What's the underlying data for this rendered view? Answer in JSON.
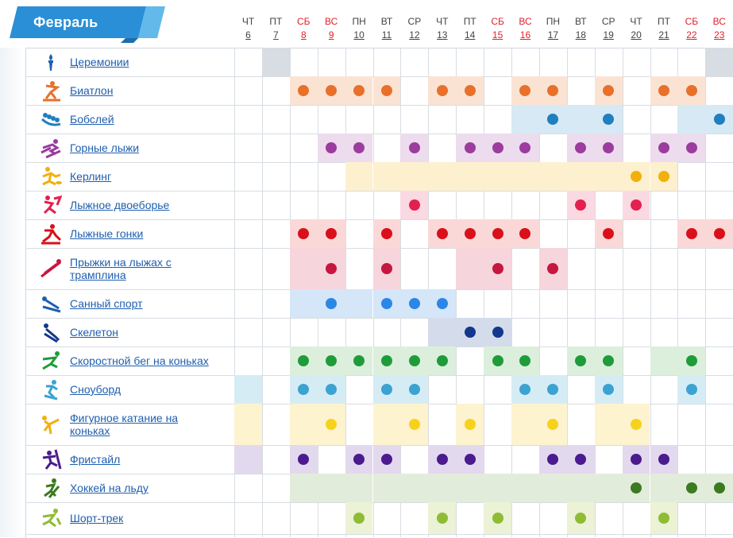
{
  "month": "Февраль",
  "days": [
    {
      "wd": "ЧТ",
      "d": "6",
      "weekend": false
    },
    {
      "wd": "ПТ",
      "d": "7",
      "weekend": false
    },
    {
      "wd": "СБ",
      "d": "8",
      "weekend": true
    },
    {
      "wd": "ВС",
      "d": "9",
      "weekend": true
    },
    {
      "wd": "ПН",
      "d": "10",
      "weekend": false
    },
    {
      "wd": "ВТ",
      "d": "11",
      "weekend": false
    },
    {
      "wd": "СР",
      "d": "12",
      "weekend": false
    },
    {
      "wd": "ЧТ",
      "d": "13",
      "weekend": false
    },
    {
      "wd": "ПТ",
      "d": "14",
      "weekend": false
    },
    {
      "wd": "СБ",
      "d": "15",
      "weekend": true
    },
    {
      "wd": "ВС",
      "d": "16",
      "weekend": true
    },
    {
      "wd": "ПН",
      "d": "17",
      "weekend": false
    },
    {
      "wd": "ВТ",
      "d": "18",
      "weekend": false
    },
    {
      "wd": "СР",
      "d": "19",
      "weekend": false
    },
    {
      "wd": "ЧТ",
      "d": "20",
      "weekend": false
    },
    {
      "wd": "ПТ",
      "d": "21",
      "weekend": false
    },
    {
      "wd": "СБ",
      "d": "22",
      "weekend": true
    },
    {
      "wd": "ВС",
      "d": "23",
      "weekend": true
    }
  ],
  "sports": [
    {
      "name": "Церемонии",
      "icon": "torch-icon",
      "bg": "#d7dde2",
      "dot": "#000000",
      "bgDays": [
        7,
        23
      ],
      "dotDays": []
    },
    {
      "name": "Биатлон",
      "icon": "biathlon-icon",
      "bg": "#fbe3d4",
      "dot": "#e8702a",
      "bgDays": [
        8,
        9,
        10,
        11,
        13,
        14,
        16,
        17,
        19,
        21,
        22
      ],
      "dotDays": [
        8,
        9,
        10,
        11,
        13,
        14,
        16,
        17,
        19,
        21,
        22
      ]
    },
    {
      "name": "Бобслей",
      "icon": "bobsleigh-icon",
      "bg": "#d6e9f5",
      "dot": "#1f7fbf",
      "bgDays": [
        16,
        17,
        18,
        19,
        22,
        23
      ],
      "dotDays": [
        17,
        19,
        23
      ]
    },
    {
      "name": "Горные лыжи",
      "icon": "alpine-skiing-icon",
      "bg": "#ecdcee",
      "dot": "#9b3c9e",
      "bgDays": [
        9,
        10,
        12,
        14,
        15,
        16,
        18,
        19,
        21,
        22
      ],
      "dotDays": [
        9,
        10,
        12,
        14,
        15,
        16,
        18,
        19,
        21,
        22
      ]
    },
    {
      "name": "Керлинг",
      "icon": "curling-icon",
      "bg": "#fdf0cf",
      "dot": "#f2b00c",
      "bgDays": [
        10,
        11,
        12,
        13,
        14,
        15,
        16,
        17,
        18,
        19,
        20,
        21
      ],
      "dotDays": [
        20,
        21
      ]
    },
    {
      "name": "Лыжное двоеборье",
      "icon": "nordic-combined-icon",
      "bg": "#fbd9e2",
      "dot": "#e3204f",
      "bgDays": [
        12,
        18,
        20
      ],
      "dotDays": [
        12,
        18,
        20
      ]
    },
    {
      "name": "Лыжные гонки",
      "icon": "cross-country-icon",
      "bg": "#fbd8d8",
      "dot": "#d9101a",
      "bgDays": [
        8,
        9,
        11,
        13,
        14,
        15,
        16,
        19,
        22,
        23
      ],
      "dotDays": [
        8,
        9,
        11,
        13,
        14,
        15,
        16,
        19,
        22,
        23
      ]
    },
    {
      "name": "Прыжки на лыжах с трамплина",
      "icon": "ski-jumping-icon",
      "bg": "#f6d5dd",
      "dot": "#c7163f",
      "bgDays": [
        8,
        9,
        11,
        14,
        15,
        17
      ],
      "dotDays": [
        9,
        11,
        15,
        17
      ]
    },
    {
      "name": "Санный спорт",
      "icon": "luge-icon",
      "bg": "#d4e6f8",
      "dot": "#2b86e6",
      "bgDays": [
        8,
        9,
        10,
        11,
        12,
        13
      ],
      "dotDays": [
        9,
        11,
        12,
        13
      ]
    },
    {
      "name": "Скелетон",
      "icon": "skeleton-icon",
      "bg": "#d4dbea",
      "dot": "#14378e",
      "bgDays": [
        13,
        14,
        15
      ],
      "dotDays": [
        14,
        15
      ]
    },
    {
      "name": "Скоростной бег на коньках",
      "icon": "speed-skating-icon",
      "bg": "#dcefdc",
      "dot": "#1e9c3a",
      "bgDays": [
        8,
        9,
        10,
        11,
        12,
        13,
        15,
        16,
        18,
        19,
        21,
        22
      ],
      "dotDays": [
        8,
        9,
        10,
        11,
        12,
        13,
        15,
        16,
        18,
        19,
        22
      ]
    },
    {
      "name": "Сноуборд",
      "icon": "snowboard-icon",
      "bg": "#d6ecf5",
      "dot": "#3aa3d2",
      "bgDays": [
        6,
        8,
        9,
        11,
        12,
        16,
        17,
        19,
        22
      ],
      "dotDays": [
        8,
        9,
        11,
        12,
        16,
        17,
        19,
        22
      ]
    },
    {
      "name": "Фигурное катание на коньках",
      "icon": "figure-skating-icon",
      "bg": "#fdf3cf",
      "dot": "#f7d21b",
      "bgDays": [
        6,
        8,
        9,
        11,
        12,
        14,
        16,
        17,
        19,
        20
      ],
      "dotDays": [
        9,
        12,
        14,
        17,
        20
      ]
    },
    {
      "name": "Фристайл",
      "icon": "freestyle-icon",
      "bg": "#e3d9ee",
      "dot": "#4b1b8f",
      "bgDays": [
        6,
        8,
        10,
        11,
        13,
        14,
        17,
        18,
        20,
        21
      ],
      "dotDays": [
        8,
        10,
        11,
        13,
        14,
        17,
        18,
        20,
        21
      ]
    },
    {
      "name": "Хоккей на льду",
      "icon": "ice-hockey-icon",
      "bg": "#e2ecdb",
      "dot": "#3b7a1f",
      "bgDays": [
        8,
        9,
        10,
        11,
        12,
        13,
        14,
        15,
        16,
        17,
        18,
        19,
        20,
        21,
        22,
        23
      ],
      "dotDays": [
        20,
        22,
        23
      ]
    },
    {
      "name": "Шорт-трек",
      "icon": "short-track-icon",
      "bg": "#ebf2d6",
      "dot": "#8fbc33",
      "bgDays": [
        10,
        13,
        15,
        18,
        21
      ],
      "dotDays": [
        10,
        13,
        15,
        18,
        21
      ]
    }
  ]
}
